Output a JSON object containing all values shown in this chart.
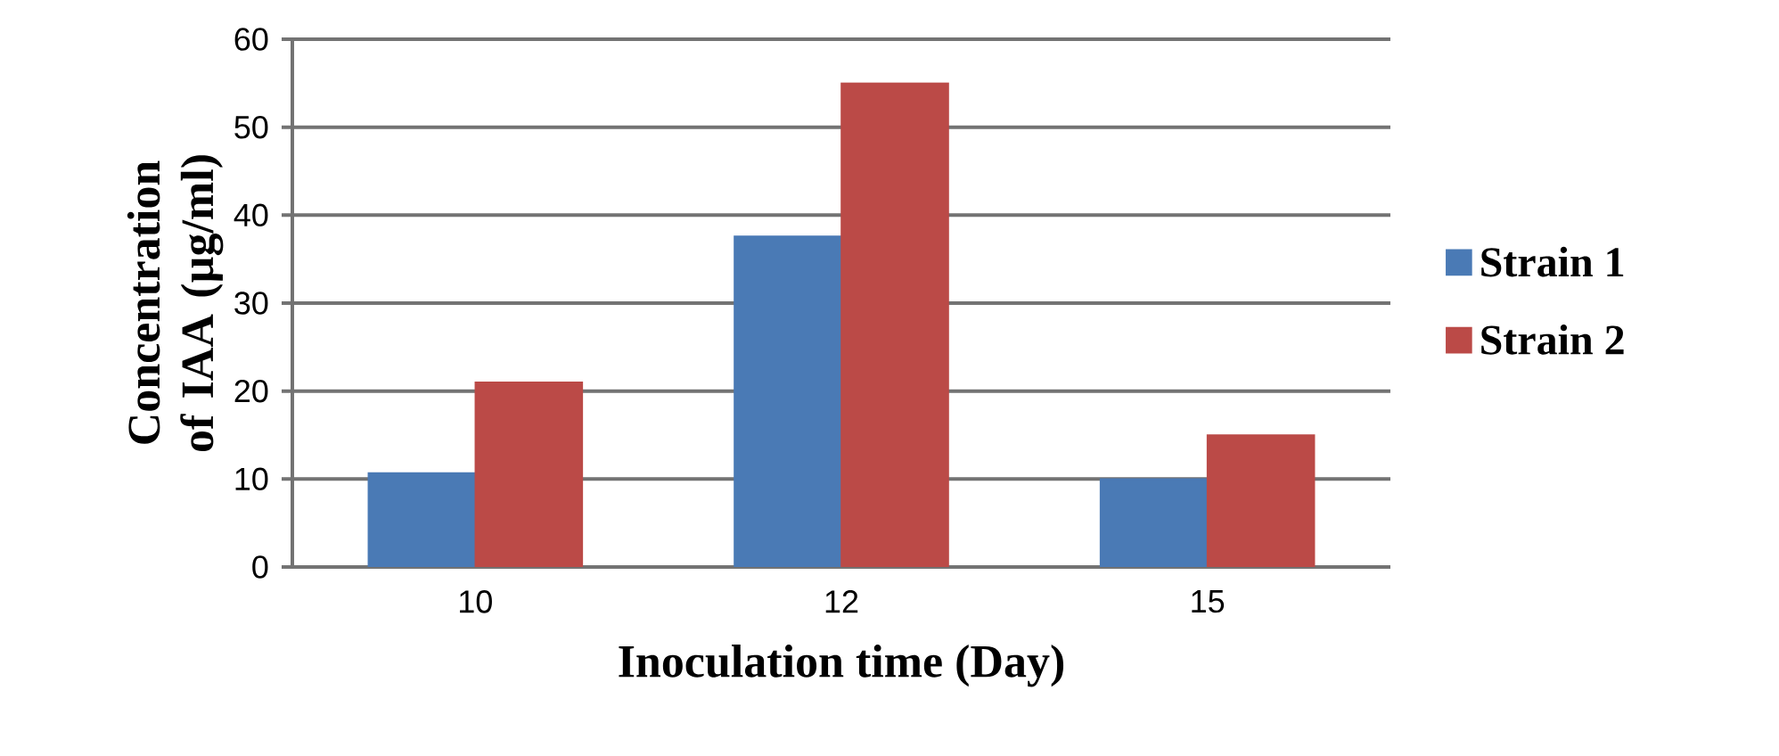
{
  "chart_data": {
    "type": "bar",
    "xlabel": "Inoculation time (Day)",
    "ylabel": "Concentration of IAA (µg/ml)",
    "categories": [
      "10",
      "12",
      "15"
    ],
    "series": [
      {
        "name": "Strain 1",
        "color": "#4a7ab5",
        "values": [
          10.7,
          37.6,
          10.0
        ]
      },
      {
        "name": "Strain 2",
        "color": "#bb4a47",
        "values": [
          21.0,
          55.0,
          15.0
        ]
      }
    ],
    "ylim": [
      0,
      60
    ],
    "yticks": [
      0,
      10,
      20,
      30,
      40,
      50,
      60
    ],
    "grid": "y",
    "legend": "right"
  }
}
